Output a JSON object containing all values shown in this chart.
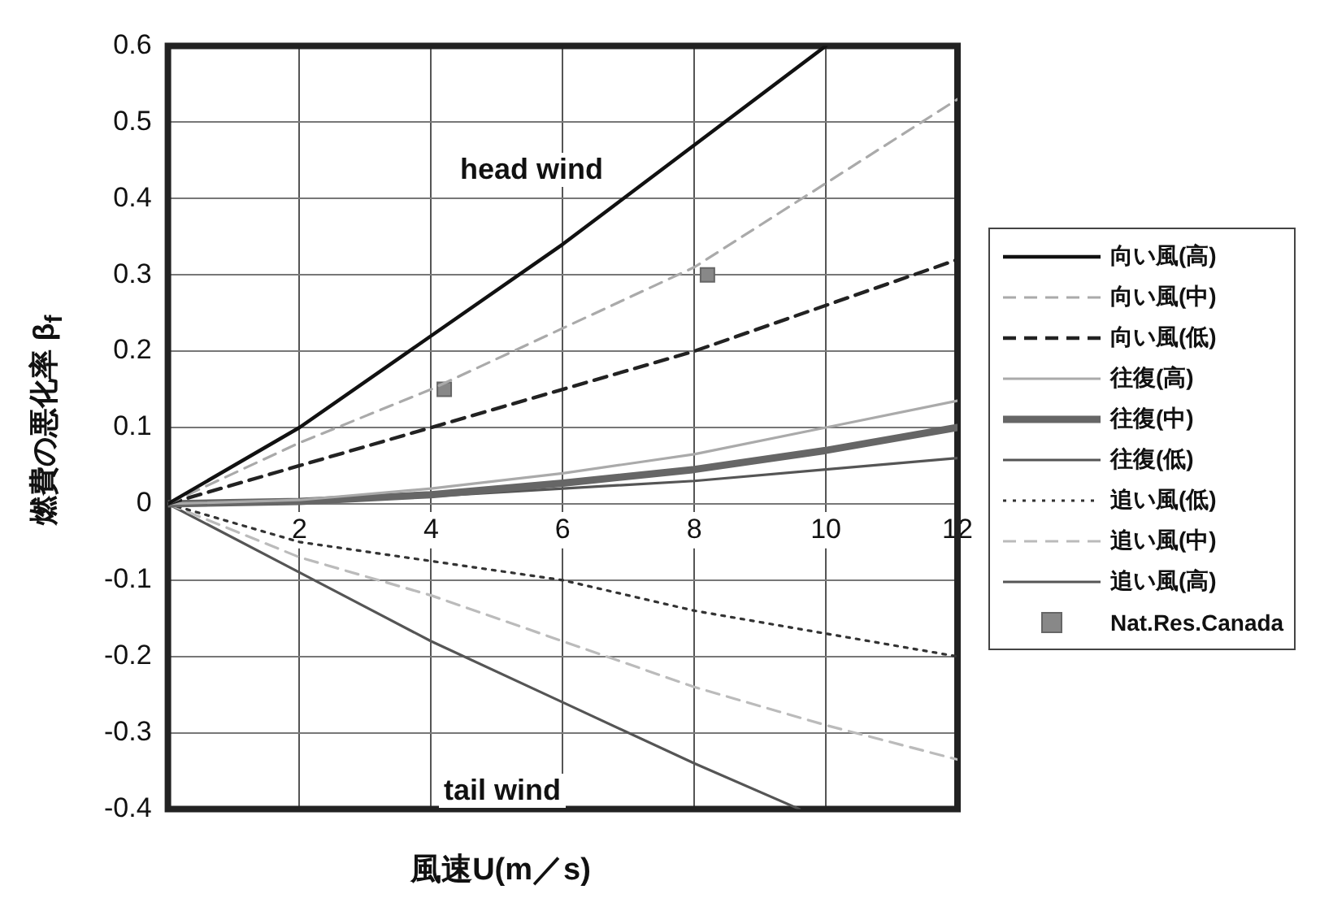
{
  "chart_data": {
    "type": "line",
    "xlabel": "風速U(m／s)",
    "ylabel": "燃費の悪化率 β$_{f}$",
    "x": [
      0,
      2,
      4,
      6,
      8,
      10,
      12
    ],
    "xlim": [
      0,
      12
    ],
    "xticks": [
      {
        "value": 0,
        "label": null
      },
      2,
      4,
      6,
      8,
      10,
      12
    ],
    "ylim": [
      -0.4,
      0.6
    ],
    "yticks": [
      -0.4,
      -0.3,
      -0.2,
      -0.1,
      0,
      0.1,
      0.2,
      0.3,
      0.4,
      0.5,
      0.6
    ],
    "grid": true,
    "legend": "right",
    "marker": "none",
    "series": [
      {
        "name": "向い風(高)",
        "color": "#111111",
        "line_style": "solid",
        "x": [
          0,
          2,
          4,
          6,
          8,
          10
        ],
        "values": [
          0,
          0.1,
          0.22,
          0.34,
          0.47,
          0.6
        ]
      },
      {
        "name": "向い風(中)",
        "color": "#aaaaaa",
        "line_style": "dashed",
        "values": [
          0,
          0.08,
          0.15,
          0.23,
          0.31,
          0.42,
          0.53
        ]
      },
      {
        "name": "向い風(低)",
        "color": "#222222",
        "line_style": "dashed",
        "values": [
          0,
          0.05,
          0.1,
          0.15,
          0.2,
          0.26,
          0.32
        ]
      },
      {
        "name": "往復(高)",
        "color": "#aaaaaa",
        "line_style": "solid",
        "values": [
          0,
          0.005,
          0.02,
          0.04,
          0.065,
          0.1,
          0.135
        ]
      },
      {
        "name": "往復(中)",
        "color": "#666666",
        "line_style": "solid",
        "values": [
          0,
          0.003,
          0.012,
          0.027,
          0.045,
          0.07,
          0.1
        ]
      },
      {
        "name": "往復(低)",
        "color": "#555555",
        "line_style": "solid",
        "values": [
          0,
          0.002,
          0.01,
          0.02,
          0.03,
          0.045,
          0.06
        ]
      },
      {
        "name": "追い風(低)",
        "color": "#333333",
        "line_style": "dotted",
        "values": [
          0,
          -0.05,
          -0.075,
          -0.1,
          -0.14,
          -0.17,
          -0.2
        ]
      },
      {
        "name": "追い風(中)",
        "color": "#bbbbbb",
        "line_style": "dashed",
        "values": [
          0,
          -0.07,
          -0.12,
          -0.18,
          -0.24,
          -0.29,
          -0.335
        ]
      },
      {
        "name": "追い風(高)",
        "color": "#555555",
        "line_style": "solid",
        "x": [
          0,
          2,
          4,
          6,
          8,
          9.6
        ],
        "values": [
          0,
          -0.09,
          -0.18,
          -0.26,
          -0.34,
          -0.4
        ]
      },
      {
        "name": "Nat.Res.Canada",
        "color": "#888888",
        "type": "scatter",
        "marker": "square",
        "x": [
          4.2,
          8.2
        ],
        "values": [
          0.15,
          0.3
        ]
      }
    ],
    "annotations": [
      "head wind",
      "tail wind"
    ]
  }
}
